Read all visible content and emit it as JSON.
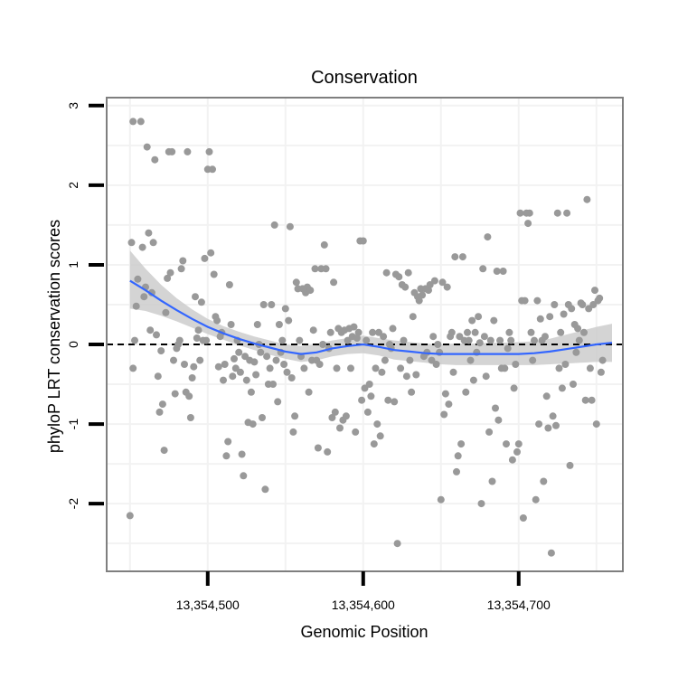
{
  "chart_data": {
    "type": "scatter",
    "title": "Conservation",
    "xlabel": "Genomic Position",
    "ylabel": "phyloP LRT conservation scores",
    "xlim": [
      13354435,
      13354767
    ],
    "ylim": [
      -2.85,
      3.1
    ],
    "x_ticks": [
      {
        "value": 13354500,
        "label": "13,354,500"
      },
      {
        "value": 13354600,
        "label": "13,354,600"
      },
      {
        "value": 13354700,
        "label": "13,354,700"
      }
    ],
    "y_ticks": [
      {
        "value": -2,
        "label": "-2"
      },
      {
        "value": -1,
        "label": "-1"
      },
      {
        "value": 0,
        "label": "0"
      },
      {
        "value": 1,
        "label": "1"
      },
      {
        "value": 2,
        "label": "2"
      },
      {
        "value": 3,
        "label": "3"
      }
    ],
    "reference_line": {
      "y": 0,
      "style": "dashed",
      "color": "#000000"
    },
    "point_color": "#999999",
    "smooth_color": "#3366ff",
    "band_color": "#cccccc",
    "points": [
      [
        13354450,
        -2.15
      ],
      [
        13354451,
        1.28
      ],
      [
        13354452,
        2.8
      ],
      [
        13354452,
        -0.3
      ],
      [
        13354453,
        0.05
      ],
      [
        13354454,
        0.48
      ],
      [
        13354455,
        0.82
      ],
      [
        13354457,
        2.8
      ],
      [
        13354458,
        1.22
      ],
      [
        13354459,
        0.6
      ],
      [
        13354460,
        0.72
      ],
      [
        13354461,
        2.48
      ],
      [
        13354462,
        1.4
      ],
      [
        13354463,
        0.18
      ],
      [
        13354464,
        0.65
      ],
      [
        13354465,
        1.28
      ],
      [
        13354466,
        2.32
      ],
      [
        13354467,
        0.12
      ],
      [
        13354468,
        -0.4
      ],
      [
        13354469,
        -0.85
      ],
      [
        13354470,
        -0.08
      ],
      [
        13354471,
        -0.75
      ],
      [
        13354472,
        -1.33
      ],
      [
        13354473,
        0.4
      ],
      [
        13354474,
        0.83
      ],
      [
        13354475,
        2.42
      ],
      [
        13354476,
        0.9
      ],
      [
        13354477,
        2.42
      ],
      [
        13354478,
        -0.2
      ],
      [
        13354479,
        -0.62
      ],
      [
        13354480,
        -0.05
      ],
      [
        13354481,
        0.0
      ],
      [
        13354482,
        0.05
      ],
      [
        13354483,
        0.95
      ],
      [
        13354484,
        1.05
      ],
      [
        13354485,
        -0.25
      ],
      [
        13354486,
        -0.6
      ],
      [
        13354487,
        2.42
      ],
      [
        13354488,
        -0.65
      ],
      [
        13354489,
        -0.92
      ],
      [
        13354490,
        -0.42
      ],
      [
        13354491,
        -0.28
      ],
      [
        13354492,
        0.6
      ],
      [
        13354493,
        0.08
      ],
      [
        13354494,
        0.18
      ],
      [
        13354495,
        -0.2
      ],
      [
        13354496,
        0.53
      ],
      [
        13354497,
        0.05
      ],
      [
        13354498,
        1.08
      ],
      [
        13354499,
        0.05
      ],
      [
        13354500,
        2.2
      ],
      [
        13354501,
        2.42
      ],
      [
        13354502,
        1.15
      ],
      [
        13354503,
        2.2
      ],
      [
        13354504,
        0.88
      ],
      [
        13354505,
        0.35
      ],
      [
        13354506,
        0.3
      ],
      [
        13354507,
        -0.28
      ],
      [
        13354508,
        0.1
      ],
      [
        13354509,
        0.15
      ],
      [
        13354510,
        -0.45
      ],
      [
        13354511,
        -0.25
      ],
      [
        13354512,
        -1.4
      ],
      [
        13354513,
        -1.22
      ],
      [
        13354514,
        0.75
      ],
      [
        13354515,
        0.25
      ],
      [
        13354516,
        -0.4
      ],
      [
        13354517,
        -0.18
      ],
      [
        13354518,
        -0.3
      ],
      [
        13354519,
        0.05
      ],
      [
        13354520,
        -0.1
      ],
      [
        13354521,
        -0.35
      ],
      [
        13354522,
        -1.38
      ],
      [
        13354523,
        -1.65
      ],
      [
        13354524,
        -0.15
      ],
      [
        13354525,
        -0.45
      ],
      [
        13354526,
        -0.98
      ],
      [
        13354527,
        -0.2
      ],
      [
        13354528,
        -0.6
      ],
      [
        13354529,
        -1.0
      ],
      [
        13354530,
        -0.22
      ],
      [
        13354531,
        -0.38
      ],
      [
        13354532,
        0.25
      ],
      [
        13354533,
        0.0
      ],
      [
        13354534,
        -0.1
      ],
      [
        13354535,
        -0.92
      ],
      [
        13354536,
        0.5
      ],
      [
        13354537,
        -1.82
      ],
      [
        13354538,
        -0.15
      ],
      [
        13354539,
        -0.5
      ],
      [
        13354540,
        -0.3
      ],
      [
        13354541,
        0.5
      ],
      [
        13354542,
        -0.5
      ],
      [
        13354543,
        1.5
      ],
      [
        13354544,
        -0.2
      ],
      [
        13354545,
        -0.72
      ],
      [
        13354546,
        0.25
      ],
      [
        13354547,
        -0.1
      ],
      [
        13354548,
        0.05
      ],
      [
        13354549,
        -0.25
      ],
      [
        13354550,
        0.45
      ],
      [
        13354551,
        -0.35
      ],
      [
        13354552,
        0.3
      ],
      [
        13354553,
        1.48
      ],
      [
        13354554,
        -0.42
      ],
      [
        13354555,
        -1.1
      ],
      [
        13354556,
        -0.9
      ],
      [
        13354557,
        0.78
      ],
      [
        13354558,
        0.7
      ],
      [
        13354559,
        0.05
      ],
      [
        13354560,
        -0.15
      ],
      [
        13354561,
        0.7
      ],
      [
        13354562,
        -0.3
      ],
      [
        13354563,
        0.65
      ],
      [
        13354564,
        0.72
      ],
      [
        13354565,
        -0.6
      ],
      [
        13354566,
        0.68
      ],
      [
        13354567,
        -0.2
      ],
      [
        13354568,
        0.18
      ],
      [
        13354569,
        0.95
      ],
      [
        13354570,
        -0.2
      ],
      [
        13354571,
        -1.3
      ],
      [
        13354572,
        -0.25
      ],
      [
        13354573,
        0.95
      ],
      [
        13354574,
        0.0
      ],
      [
        13354575,
        1.25
      ],
      [
        13354576,
        0.95
      ],
      [
        13354577,
        -1.35
      ],
      [
        13354578,
        -0.05
      ],
      [
        13354579,
        0.15
      ],
      [
        13354580,
        -0.92
      ],
      [
        13354581,
        0.78
      ],
      [
        13354582,
        -0.85
      ],
      [
        13354583,
        -0.3
      ],
      [
        13354584,
        0.2
      ],
      [
        13354585,
        -1.05
      ],
      [
        13354586,
        0.15
      ],
      [
        13354587,
        -0.95
      ],
      [
        13354588,
        0.18
      ],
      [
        13354589,
        -0.9
      ],
      [
        13354590,
        0.05
      ],
      [
        13354591,
        0.2
      ],
      [
        13354592,
        -0.3
      ],
      [
        13354593,
        0.1
      ],
      [
        13354594,
        0.22
      ],
      [
        13354595,
        -1.1
      ],
      [
        13354596,
        0.08
      ],
      [
        13354597,
        0.15
      ],
      [
        13354598,
        1.3
      ],
      [
        13354599,
        -0.7
      ],
      [
        13354600,
        1.3
      ],
      [
        13354601,
        -0.55
      ],
      [
        13354602,
        0.05
      ],
      [
        13354603,
        -0.85
      ],
      [
        13354604,
        -0.5
      ],
      [
        13354605,
        -0.65
      ],
      [
        13354606,
        0.15
      ],
      [
        13354607,
        -1.25
      ],
      [
        13354608,
        -0.3
      ],
      [
        13354609,
        -1.0
      ],
      [
        13354610,
        0.15
      ],
      [
        13354611,
        -1.15
      ],
      [
        13354612,
        -0.35
      ],
      [
        13354613,
        0.1
      ],
      [
        13354614,
        -0.2
      ],
      [
        13354615,
        0.9
      ],
      [
        13354616,
        -0.7
      ],
      [
        13354617,
        0.0
      ],
      [
        13354618,
        -0.05
      ],
      [
        13354619,
        0.2
      ],
      [
        13354620,
        -0.72
      ],
      [
        13354621,
        0.88
      ],
      [
        13354622,
        -2.5
      ],
      [
        13354623,
        0.85
      ],
      [
        13354624,
        -0.3
      ],
      [
        13354625,
        0.75
      ],
      [
        13354626,
        0.05
      ],
      [
        13354627,
        0.72
      ],
      [
        13354628,
        -0.4
      ],
      [
        13354629,
        0.9
      ],
      [
        13354630,
        -0.2
      ],
      [
        13354631,
        -0.6
      ],
      [
        13354632,
        0.35
      ],
      [
        13354633,
        0.65
      ],
      [
        13354634,
        -0.38
      ],
      [
        13354635,
        0.6
      ],
      [
        13354636,
        0.55
      ],
      [
        13354637,
        0.7
      ],
      [
        13354638,
        0.62
      ],
      [
        13354639,
        -0.15
      ],
      [
        13354640,
        0.7
      ],
      [
        13354641,
        -0.1
      ],
      [
        13354642,
        0.68
      ],
      [
        13354643,
        0.75
      ],
      [
        13354644,
        -0.2
      ],
      [
        13354645,
        0.1
      ],
      [
        13354646,
        0.8
      ],
      [
        13354647,
        -0.25
      ],
      [
        13354648,
        0.0
      ],
      [
        13354649,
        -0.1
      ],
      [
        13354650,
        -1.95
      ],
      [
        13354651,
        0.78
      ],
      [
        13354652,
        -0.88
      ],
      [
        13354653,
        -0.62
      ],
      [
        13354654,
        0.72
      ],
      [
        13354655,
        -0.75
      ],
      [
        13354656,
        0.1
      ],
      [
        13354657,
        0.15
      ],
      [
        13354658,
        -0.35
      ],
      [
        13354659,
        1.1
      ],
      [
        13354660,
        -1.6
      ],
      [
        13354661,
        -1.4
      ],
      [
        13354662,
        0.1
      ],
      [
        13354663,
        -1.25
      ],
      [
        13354664,
        1.1
      ],
      [
        13354665,
        0.05
      ],
      [
        13354666,
        -0.6
      ],
      [
        13354667,
        0.15
      ],
      [
        13354668,
        0.05
      ],
      [
        13354669,
        -0.2
      ],
      [
        13354670,
        0.3
      ],
      [
        13354671,
        -0.45
      ],
      [
        13354672,
        0.15
      ],
      [
        13354673,
        -0.1
      ],
      [
        13354674,
        0.35
      ],
      [
        13354675,
        0.02
      ],
      [
        13354676,
        -2.0
      ],
      [
        13354677,
        0.95
      ],
      [
        13354678,
        0.1
      ],
      [
        13354679,
        -0.4
      ],
      [
        13354680,
        1.35
      ],
      [
        13354681,
        -1.1
      ],
      [
        13354682,
        0.05
      ],
      [
        13354683,
        -1.72
      ],
      [
        13354684,
        0.3
      ],
      [
        13354685,
        -0.8
      ],
      [
        13354686,
        0.92
      ],
      [
        13354687,
        -0.95
      ],
      [
        13354688,
        0.05
      ],
      [
        13354689,
        -0.3
      ],
      [
        13354690,
        0.92
      ],
      [
        13354691,
        -0.3
      ],
      [
        13354692,
        -1.25
      ],
      [
        13354693,
        -0.05
      ],
      [
        13354694,
        0.15
      ],
      [
        13354695,
        0.05
      ],
      [
        13354696,
        -1.45
      ],
      [
        13354697,
        -0.55
      ],
      [
        13354698,
        -0.25
      ],
      [
        13354699,
        -1.35
      ],
      [
        13354700,
        -1.25
      ],
      [
        13354701,
        1.65
      ],
      [
        13354702,
        0.55
      ],
      [
        13354703,
        -2.18
      ],
      [
        13354704,
        0.55
      ],
      [
        13354705,
        1.65
      ],
      [
        13354706,
        1.52
      ],
      [
        13354707,
        1.65
      ],
      [
        13354708,
        0.15
      ],
      [
        13354709,
        -0.2
      ],
      [
        13354710,
        0.05
      ],
      [
        13354711,
        -1.95
      ],
      [
        13354712,
        0.55
      ],
      [
        13354713,
        -1.0
      ],
      [
        13354714,
        0.32
      ],
      [
        13354715,
        0.05
      ],
      [
        13354716,
        -1.72
      ],
      [
        13354717,
        0.1
      ],
      [
        13354718,
        -0.65
      ],
      [
        13354719,
        -1.05
      ],
      [
        13354720,
        0.35
      ],
      [
        13354721,
        -2.62
      ],
      [
        13354722,
        -0.9
      ],
      [
        13354723,
        0.5
      ],
      [
        13354724,
        -1.02
      ],
      [
        13354725,
        1.65
      ],
      [
        13354726,
        -0.3
      ],
      [
        13354727,
        0.15
      ],
      [
        13354728,
        -0.55
      ],
      [
        13354729,
        0.38
      ],
      [
        13354730,
        -0.25
      ],
      [
        13354731,
        1.65
      ],
      [
        13354732,
        0.5
      ],
      [
        13354733,
        -1.52
      ],
      [
        13354734,
        0.45
      ],
      [
        13354735,
        -0.5
      ],
      [
        13354736,
        0.25
      ],
      [
        13354737,
        -0.1
      ],
      [
        13354738,
        0.2
      ],
      [
        13354739,
        0.05
      ],
      [
        13354740,
        0.52
      ],
      [
        13354741,
        0.5
      ],
      [
        13354742,
        0.15
      ],
      [
        13354743,
        -0.7
      ],
      [
        13354744,
        1.82
      ],
      [
        13354745,
        0.45
      ],
      [
        13354746,
        -0.3
      ],
      [
        13354747,
        -0.7
      ],
      [
        13354748,
        0.5
      ],
      [
        13354749,
        0.68
      ],
      [
        13354750,
        -1.0
      ],
      [
        13354751,
        0.55
      ],
      [
        13354752,
        0.58
      ],
      [
        13354753,
        -0.35
      ],
      [
        13354754,
        -0.2
      ]
    ],
    "smooth_line": {
      "x": [
        13354450,
        13354460,
        13354470,
        13354480,
        13354490,
        13354500,
        13354510,
        13354520,
        13354530,
        13354540,
        13354550,
        13354560,
        13354570,
        13354580,
        13354590,
        13354600,
        13354610,
        13354620,
        13354630,
        13354640,
        13354650,
        13354660,
        13354670,
        13354680,
        13354690,
        13354700,
        13354710,
        13354720,
        13354730,
        13354740,
        13354750,
        13354760
      ],
      "y": [
        0.8,
        0.68,
        0.55,
        0.43,
        0.32,
        0.22,
        0.14,
        0.07,
        0.01,
        -0.04,
        -0.09,
        -0.12,
        -0.1,
        -0.05,
        -0.02,
        0.0,
        -0.03,
        -0.07,
        -0.09,
        -0.11,
        -0.12,
        -0.12,
        -0.12,
        -0.12,
        -0.12,
        -0.12,
        -0.11,
        -0.09,
        -0.06,
        -0.03,
        0.0,
        0.02
      ],
      "lower": [
        0.45,
        0.42,
        0.36,
        0.29,
        0.21,
        0.13,
        0.06,
        -0.01,
        -0.07,
        -0.13,
        -0.18,
        -0.22,
        -0.2,
        -0.15,
        -0.12,
        -0.11,
        -0.14,
        -0.19,
        -0.21,
        -0.23,
        -0.25,
        -0.26,
        -0.26,
        -0.26,
        -0.26,
        -0.26,
        -0.26,
        -0.25,
        -0.24,
        -0.23,
        -0.22,
        -0.22
      ],
      "upper": [
        1.18,
        0.95,
        0.75,
        0.58,
        0.44,
        0.32,
        0.23,
        0.16,
        0.1,
        0.05,
        0.0,
        -0.02,
        0.0,
        0.05,
        0.08,
        0.11,
        0.08,
        0.05,
        0.03,
        0.01,
        0.0,
        0.01,
        0.01,
        0.02,
        0.02,
        0.03,
        0.04,
        0.07,
        0.12,
        0.17,
        0.22,
        0.26
      ]
    }
  }
}
